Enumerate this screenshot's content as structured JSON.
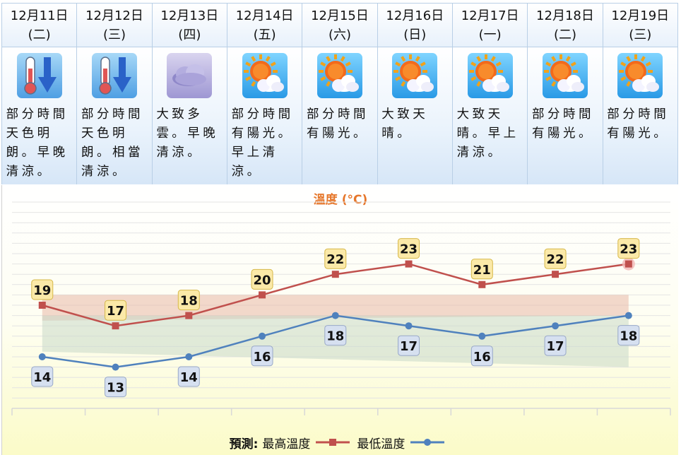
{
  "days": [
    {
      "date": "12月11日",
      "weekday": "(二)",
      "icon": "cold-thermometer-arrow-icon",
      "desc": "部分時間天色明朗。早晚清涼。"
    },
    {
      "date": "12月12日",
      "weekday": "(三)",
      "icon": "cold-thermometer-arrow-icon",
      "desc": "部分時間天色明朗。相當清涼。"
    },
    {
      "date": "12月13日",
      "weekday": "(四)",
      "icon": "cloudy-icon",
      "desc": "大致多雲。早晚清涼。"
    },
    {
      "date": "12月14日",
      "weekday": "(五)",
      "icon": "sun-cloud-icon",
      "desc": "部分時間有陽光。早上清涼。"
    },
    {
      "date": "12月15日",
      "weekday": "(六)",
      "icon": "sun-cloud-icon",
      "desc": "部分時間有陽光。"
    },
    {
      "date": "12月16日",
      "weekday": "(日)",
      "icon": "sun-cloud-icon",
      "desc": "大致天晴。"
    },
    {
      "date": "12月17日",
      "weekday": "(一)",
      "icon": "sun-cloud-icon",
      "desc": "大致天晴。早上清涼。"
    },
    {
      "date": "12月18日",
      "weekday": "(二)",
      "icon": "sun-cloud-icon",
      "desc": "部分時間有陽光。"
    },
    {
      "date": "12月19日",
      "weekday": "(三)",
      "icon": "sun-cloud-icon",
      "desc": "部分時間有陽光。"
    }
  ],
  "legend": {
    "prefix": "預測:",
    "max_label": "最高溫度",
    "min_label": "最低溫度"
  },
  "colors": {
    "max_line": "#c0504d",
    "min_line": "#4f81bd",
    "max_label_bg": "#fbe9a8",
    "min_label_bg": "#d6e0f0",
    "title": "#e6762a"
  },
  "chart_data": {
    "type": "line",
    "title": "溫度 (°C)",
    "categories": [
      "12月11日",
      "12月12日",
      "12月13日",
      "12月14日",
      "12月15日",
      "12月16日",
      "12月17日",
      "12月18日",
      "12月19日"
    ],
    "series": [
      {
        "name": "最高溫度",
        "values": [
          19,
          17,
          18,
          20,
          22,
          23,
          21,
          22,
          23
        ]
      },
      {
        "name": "最低溫度",
        "values": [
          14,
          13,
          14,
          16,
          18,
          17,
          16,
          17,
          18
        ]
      }
    ],
    "bands": [
      {
        "lower_start": 17.5,
        "upper_start": 20.0,
        "lower_end": 18.0,
        "upper_end": 20.0,
        "color": "#e8b8a8"
      },
      {
        "lower_start": 14.5,
        "upper_start": 18.0,
        "lower_end": 13.0,
        "upper_end": 18.0,
        "color": "#c8d8c8"
      }
    ],
    "ylim": [
      9,
      29
    ],
    "grid": true,
    "legend_position": "bottom"
  }
}
